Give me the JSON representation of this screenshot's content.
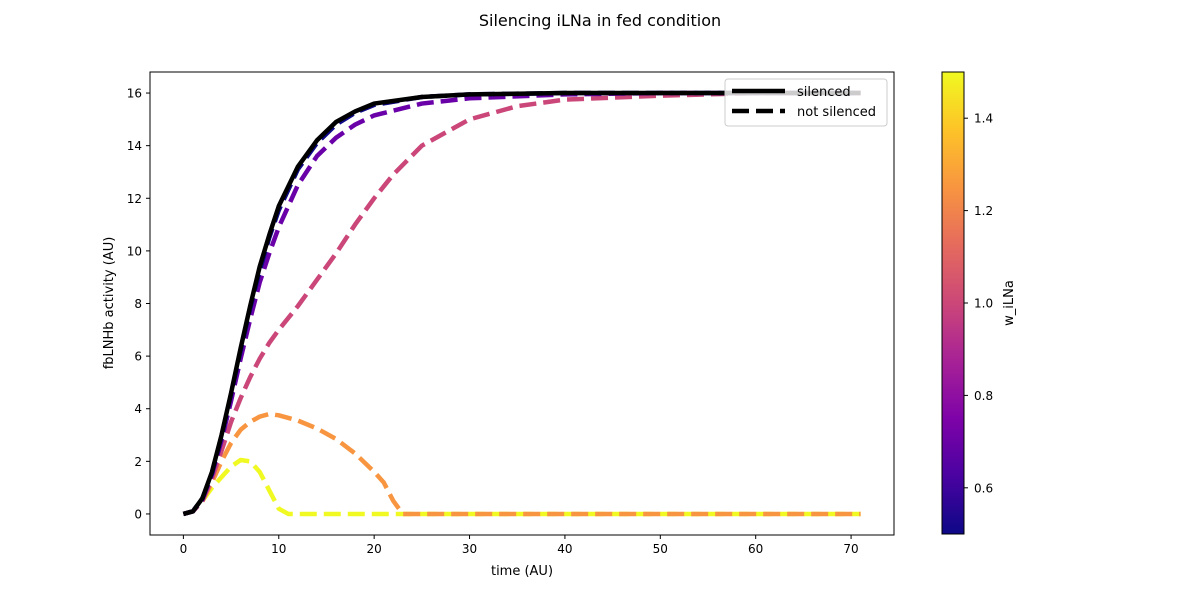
{
  "chart_data": {
    "type": "line",
    "title": "Silencing iLNa in fed condition",
    "xlabel": "time (AU)",
    "ylabel": "fbLNHb activity (AU)",
    "xlim": [
      -3.5,
      74.5
    ],
    "ylim": [
      -0.8,
      16.8
    ],
    "x_ticks": [
      0,
      10,
      20,
      30,
      40,
      50,
      60,
      70
    ],
    "y_ticks": [
      0,
      2,
      4,
      6,
      8,
      10,
      12,
      14,
      16
    ],
    "grid": false,
    "legend": {
      "placement": "top-right",
      "entries": [
        {
          "label": "silenced",
          "style": "solid",
          "color": "#000000"
        },
        {
          "label": "not silenced",
          "style": "dashed",
          "color": "#000000"
        }
      ]
    },
    "colorbar": {
      "label": "w_iLNa",
      "colormap": "plasma",
      "range": [
        0.5,
        1.5
      ],
      "ticks": [
        0.6,
        0.8,
        1.0,
        1.2,
        1.4
      ]
    },
    "series": [
      {
        "w": 0.5,
        "style": "solid",
        "color": "#000000",
        "points": [
          [
            0,
            0
          ],
          [
            1,
            0.1
          ],
          [
            2,
            0.6
          ],
          [
            3,
            1.6
          ],
          [
            4,
            3.0
          ],
          [
            5,
            4.6
          ],
          [
            6,
            6.3
          ],
          [
            7,
            7.9
          ],
          [
            8,
            9.4
          ],
          [
            9,
            10.6
          ],
          [
            10,
            11.7
          ],
          [
            12,
            13.2
          ],
          [
            14,
            14.2
          ],
          [
            16,
            14.9
          ],
          [
            18,
            15.3
          ],
          [
            20,
            15.6
          ],
          [
            25,
            15.85
          ],
          [
            30,
            15.95
          ],
          [
            40,
            16.0
          ],
          [
            50,
            16.0
          ],
          [
            60,
            16.0
          ],
          [
            71,
            16.0
          ]
        ]
      },
      {
        "w": 0.5,
        "style": "dashed",
        "color": "#0d0887",
        "points": [
          [
            0,
            0
          ],
          [
            1,
            0.1
          ],
          [
            2,
            0.6
          ],
          [
            3,
            1.55
          ],
          [
            4,
            2.95
          ],
          [
            5,
            4.55
          ],
          [
            6,
            6.2
          ],
          [
            7,
            7.8
          ],
          [
            8,
            9.25
          ],
          [
            9,
            10.5
          ],
          [
            10,
            11.55
          ],
          [
            12,
            13.1
          ],
          [
            14,
            14.1
          ],
          [
            16,
            14.8
          ],
          [
            18,
            15.25
          ],
          [
            20,
            15.55
          ],
          [
            25,
            15.85
          ],
          [
            30,
            15.95
          ],
          [
            40,
            16.0
          ],
          [
            50,
            16.0
          ],
          [
            60,
            16.0
          ],
          [
            71,
            16.0
          ]
        ]
      },
      {
        "w": 0.6,
        "style": "dashed",
        "color": "#6a00a8",
        "points": [
          [
            0,
            0
          ],
          [
            1,
            0.1
          ],
          [
            2,
            0.55
          ],
          [
            3,
            1.5
          ],
          [
            4,
            2.8
          ],
          [
            5,
            4.3
          ],
          [
            6,
            5.9
          ],
          [
            7,
            7.4
          ],
          [
            8,
            8.8
          ],
          [
            9,
            9.9
          ],
          [
            10,
            10.9
          ],
          [
            12,
            12.5
          ],
          [
            14,
            13.6
          ],
          [
            16,
            14.3
          ],
          [
            18,
            14.8
          ],
          [
            20,
            15.15
          ],
          [
            25,
            15.6
          ],
          [
            30,
            15.8
          ],
          [
            40,
            15.95
          ],
          [
            50,
            16.0
          ],
          [
            60,
            16.0
          ],
          [
            71,
            16.0
          ]
        ]
      },
      {
        "w": 0.9,
        "style": "dashed",
        "color": "#cb4679",
        "points": [
          [
            0,
            0
          ],
          [
            1,
            0.1
          ],
          [
            2,
            0.5
          ],
          [
            3,
            1.35
          ],
          [
            4,
            2.4
          ],
          [
            5,
            3.5
          ],
          [
            6,
            4.4
          ],
          [
            7,
            5.2
          ],
          [
            8,
            5.9
          ],
          [
            9,
            6.5
          ],
          [
            10,
            7.0
          ],
          [
            12,
            7.9
          ],
          [
            14,
            8.9
          ],
          [
            16,
            9.9
          ],
          [
            18,
            11.0
          ],
          [
            20,
            12.0
          ],
          [
            22,
            12.9
          ],
          [
            25,
            14.0
          ],
          [
            30,
            15.0
          ],
          [
            35,
            15.5
          ],
          [
            40,
            15.75
          ],
          [
            50,
            15.9
          ],
          [
            60,
            16.0
          ],
          [
            71,
            16.0
          ]
        ]
      },
      {
        "w": 1.2,
        "style": "dashed",
        "color": "#f89540",
        "points": [
          [
            0,
            0
          ],
          [
            1,
            0.1
          ],
          [
            2,
            0.5
          ],
          [
            3,
            1.2
          ],
          [
            4,
            2.0
          ],
          [
            5,
            2.7
          ],
          [
            6,
            3.2
          ],
          [
            7,
            3.5
          ],
          [
            8,
            3.7
          ],
          [
            9,
            3.8
          ],
          [
            10,
            3.75
          ],
          [
            12,
            3.55
          ],
          [
            14,
            3.25
          ],
          [
            16,
            2.85
          ],
          [
            18,
            2.3
          ],
          [
            20,
            1.6
          ],
          [
            21,
            1.2
          ],
          [
            22,
            0.5
          ],
          [
            23,
            0
          ],
          [
            25,
            0
          ],
          [
            71,
            0
          ]
        ]
      },
      {
        "w": 1.5,
        "style": "dashed",
        "color": "#f0f921",
        "points": [
          [
            0,
            0
          ],
          [
            1,
            0.1
          ],
          [
            2,
            0.5
          ],
          [
            3,
            1.0
          ],
          [
            4,
            1.4
          ],
          [
            5,
            1.8
          ],
          [
            6,
            2.05
          ],
          [
            7,
            2.0
          ],
          [
            8,
            1.6
          ],
          [
            9,
            0.9
          ],
          [
            10,
            0.2
          ],
          [
            11,
            0
          ],
          [
            13,
            0
          ],
          [
            71,
            0
          ]
        ]
      }
    ]
  }
}
